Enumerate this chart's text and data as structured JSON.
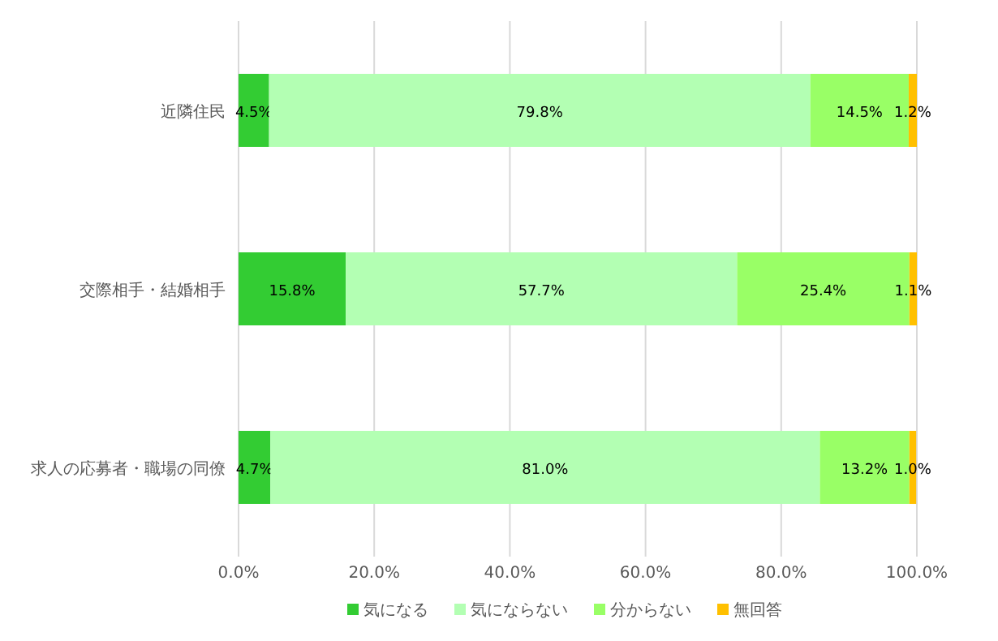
{
  "chart_data": {
    "type": "bar",
    "orientation": "horizontal",
    "stacked": true,
    "categories": [
      "近隣住民",
      "交際相手・結婚相手",
      "求人の応募者・職場の同僚"
    ],
    "series": [
      {
        "name": "気になる",
        "color": "#33cc33",
        "values": [
          4.5,
          15.8,
          4.7
        ],
        "value_labels": [
          "4.5%",
          "15.8%",
          "4.7%"
        ]
      },
      {
        "name": "気にならない",
        "color": "#b3ffb3",
        "values": [
          79.8,
          57.7,
          81.0
        ],
        "value_labels": [
          "79.8%",
          "57.7%",
          "81.0%"
        ]
      },
      {
        "name": "分からない",
        "color": "#99ff66",
        "values": [
          14.5,
          25.4,
          13.2
        ],
        "value_labels": [
          "14.5%",
          "25.4%",
          "13.2%"
        ]
      },
      {
        "name": "無回答",
        "color": "#ffc000",
        "values": [
          1.2,
          1.1,
          1.0
        ],
        "value_labels": [
          "1.2%",
          "1.1%",
          "1.0%"
        ]
      }
    ],
    "xlim": [
      0,
      100
    ],
    "xticks": [
      {
        "value": 0,
        "label": "0.0%"
      },
      {
        "value": 20,
        "label": "20.0%"
      },
      {
        "value": 40,
        "label": "40.0%"
      },
      {
        "value": 60,
        "label": "60.0%"
      },
      {
        "value": 80,
        "label": "80.0%"
      },
      {
        "value": 100,
        "label": "100.0%"
      }
    ],
    "grid": "x",
    "legend": "bottom"
  }
}
